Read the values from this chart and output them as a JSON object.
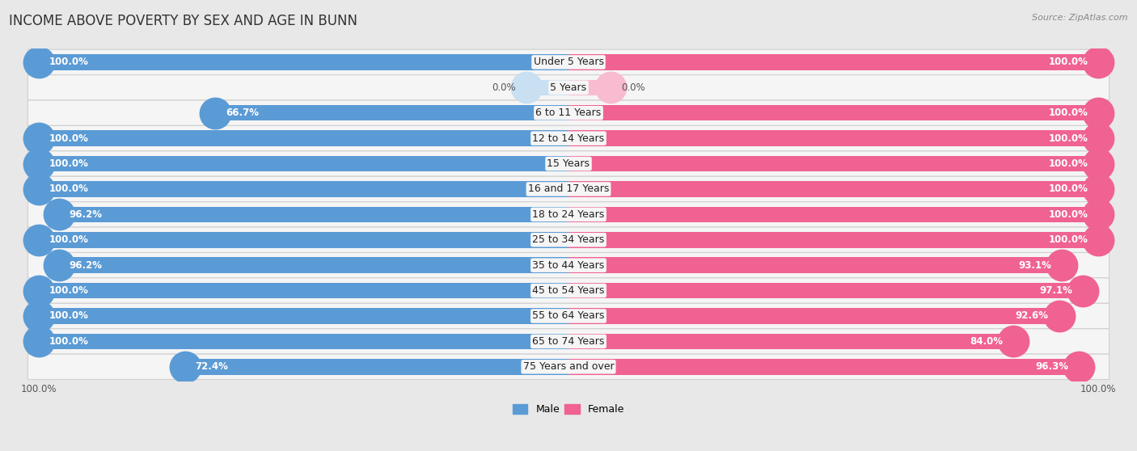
{
  "title": "INCOME ABOVE POVERTY BY SEX AND AGE IN BUNN",
  "source": "Source: ZipAtlas.com",
  "categories": [
    "Under 5 Years",
    "5 Years",
    "6 to 11 Years",
    "12 to 14 Years",
    "15 Years",
    "16 and 17 Years",
    "18 to 24 Years",
    "25 to 34 Years",
    "35 to 44 Years",
    "45 to 54 Years",
    "55 to 64 Years",
    "65 to 74 Years",
    "75 Years and over"
  ],
  "male_values": [
    100.0,
    0.0,
    66.7,
    100.0,
    100.0,
    100.0,
    96.2,
    100.0,
    96.2,
    100.0,
    100.0,
    100.0,
    72.4
  ],
  "female_values": [
    100.0,
    0.0,
    100.0,
    100.0,
    100.0,
    100.0,
    100.0,
    100.0,
    93.1,
    97.1,
    92.6,
    84.0,
    96.3
  ],
  "male_color": "#5b9bd5",
  "female_color": "#f06292",
  "male_light_color": "#c9dff2",
  "female_light_color": "#f8bbd0",
  "bg_color": "#e8e8e8",
  "row_bg_color": "#f5f5f5",
  "row_border_color": "#d0d0d0",
  "title_fontsize": 12,
  "label_fontsize": 9,
  "tick_fontsize": 8.5,
  "bar_height": 0.62,
  "value_fontsize": 8.5
}
